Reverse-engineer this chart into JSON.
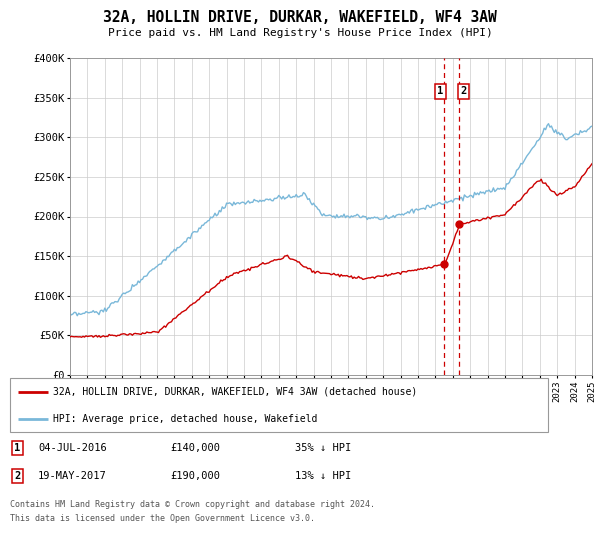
{
  "title": "32A, HOLLIN DRIVE, DURKAR, WAKEFIELD, WF4 3AW",
  "subtitle": "Price paid vs. HM Land Registry's House Price Index (HPI)",
  "hpi_label": "HPI: Average price, detached house, Wakefield",
  "price_label": "32A, HOLLIN DRIVE, DURKAR, WAKEFIELD, WF4 3AW (detached house)",
  "hpi_color": "#7ab8d9",
  "price_color": "#cc0000",
  "dashed_color": "#cc0000",
  "marker_color": "#cc0000",
  "annotation1": {
    "num": "1",
    "date": "04-JUL-2016",
    "price": "£140,000",
    "pct": "35% ↓ HPI"
  },
  "annotation2": {
    "num": "2",
    "date": "19-MAY-2017",
    "price": "£190,000",
    "pct": "13% ↓ HPI"
  },
  "vline1_x": 2016.5,
  "vline2_x": 2017.38,
  "marker1_x": 2016.5,
  "marker1_y": 140000,
  "marker2_x": 2017.38,
  "marker2_y": 190000,
  "xmin": 1995,
  "xmax": 2025,
  "ymin": 0,
  "ymax": 400000,
  "yticks": [
    0,
    50000,
    100000,
    150000,
    200000,
    250000,
    300000,
    350000,
    400000
  ],
  "ytick_labels": [
    "£0",
    "£50K",
    "£100K",
    "£150K",
    "£200K",
    "£250K",
    "£300K",
    "£350K",
    "£400K"
  ],
  "footer1": "Contains HM Land Registry data © Crown copyright and database right 2024.",
  "footer2": "This data is licensed under the Open Government Licence v3.0."
}
